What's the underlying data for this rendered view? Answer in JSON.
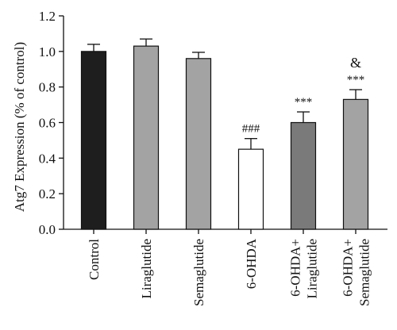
{
  "chart_data": {
    "type": "bar",
    "title": "",
    "xlabel": "",
    "ylabel": "Atg7 Expression (% of control)",
    "ylim": [
      0,
      1.2
    ],
    "yticks": [
      0.0,
      0.2,
      0.4,
      0.6,
      0.8,
      1.0,
      1.2
    ],
    "ytick_labels": [
      "0.0",
      "0.2",
      "0.4",
      "0.6",
      "0.8",
      "1.0",
      "1.2"
    ],
    "grid": false,
    "legend": "none",
    "categories": [
      "Control",
      "Liraglutide",
      "Semaglutide",
      "6-OHDA",
      "6-OHDA+ Liraglutide",
      "6-OHDA+ Semaglutide"
    ],
    "category_label_lines": [
      [
        "Control"
      ],
      [
        "Liraglutide"
      ],
      [
        "Semaglutide"
      ],
      [
        "6-OHDA"
      ],
      [
        "6-OHDA+",
        "Liraglutide"
      ],
      [
        "6-OHDA+",
        "Semaglutide"
      ]
    ],
    "values": [
      1.0,
      1.03,
      0.96,
      0.45,
      0.6,
      0.73
    ],
    "errors": [
      0.04,
      0.04,
      0.035,
      0.06,
      0.06,
      0.055
    ],
    "bar_colors": [
      "#1e1e1e",
      "#a3a3a3",
      "#a3a3a3",
      "#ffffff",
      "#7a7a7a",
      "#a3a3a3"
    ],
    "annotations": [
      {
        "category_index": 3,
        "lines": [
          "###"
        ]
      },
      {
        "category_index": 4,
        "lines": [
          "***"
        ]
      },
      {
        "category_index": 5,
        "lines": [
          "&",
          "***"
        ]
      }
    ]
  }
}
